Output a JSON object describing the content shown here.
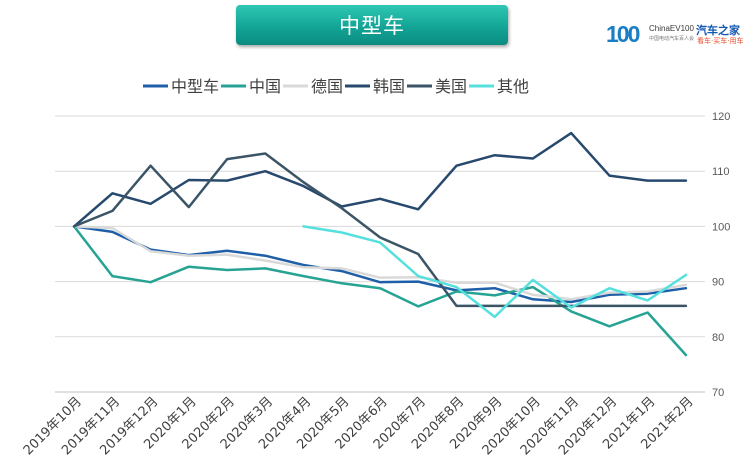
{
  "header": {
    "title": "中型车"
  },
  "brand": {
    "number": "100",
    "english": "ChinaEV100",
    "subtitle": "中国电动汽车百人会",
    "name": "汽车之家",
    "tagline": "看车·买车·用车"
  },
  "chart_data": {
    "type": "line",
    "title": "中型车",
    "categories": [
      "2019年10月",
      "2019年11月",
      "2019年12月",
      "2020年1月",
      "2020年2月",
      "2020年3月",
      "2020年4月",
      "2020年5月",
      "2020年6月",
      "2020年7月",
      "2020年8月",
      "2020年9月",
      "2020年10月",
      "2020年11月",
      "2020年12月",
      "2021年1月",
      "2021年2月"
    ],
    "ylim": [
      70,
      120
    ],
    "yticks": [
      70,
      80,
      90,
      100,
      110,
      120
    ],
    "y_axis_position": "right",
    "grid": true,
    "legend": "top",
    "series": [
      {
        "name": "中型车",
        "color": "#1f5fa8",
        "values": [
          100,
          99.0,
          95.8,
          94.8,
          95.6,
          94.7,
          93.0,
          91.9,
          89.9,
          90.0,
          88.4,
          88.8,
          86.8,
          86.3,
          87.6,
          87.8,
          88.8
        ]
      },
      {
        "name": "中国",
        "color": "#27a394",
        "values": [
          100,
          91.0,
          89.9,
          92.7,
          92.1,
          92.4,
          91.0,
          89.7,
          88.8,
          85.5,
          88.2,
          87.5,
          89.0,
          84.6,
          81.9,
          84.4,
          76.7
        ]
      },
      {
        "name": "德国",
        "color": "#d9d9d9",
        "values": [
          100,
          99.7,
          95.5,
          94.7,
          94.9,
          93.8,
          92.6,
          92.4,
          90.7,
          90.8,
          89.8,
          89.8,
          87.6,
          86.8,
          88.0,
          88.2,
          89.4
        ]
      },
      {
        "name": "韩国",
        "color": "#27496d",
        "values": [
          100,
          106.0,
          104.1,
          108.4,
          108.3,
          110.0,
          107.3,
          103.6,
          105.0,
          103.1,
          111.0,
          112.9,
          112.3,
          116.9,
          109.2,
          108.3,
          108.3
        ]
      },
      {
        "name": "美国",
        "color": "#3b5567",
        "values": [
          100,
          102.8,
          111.0,
          103.5,
          112.2,
          113.2,
          108.0,
          103.3,
          98.0,
          95.0,
          85.6,
          85.6,
          85.6,
          85.6,
          85.6,
          85.6,
          85.6
        ]
      },
      {
        "name": "其他",
        "color": "#55e0de",
        "values": [
          null,
          null,
          null,
          null,
          null,
          null,
          100.0,
          98.9,
          97.1,
          91.0,
          89.0,
          83.6,
          90.3,
          85.3,
          88.8,
          86.6,
          91.2
        ]
      }
    ]
  }
}
